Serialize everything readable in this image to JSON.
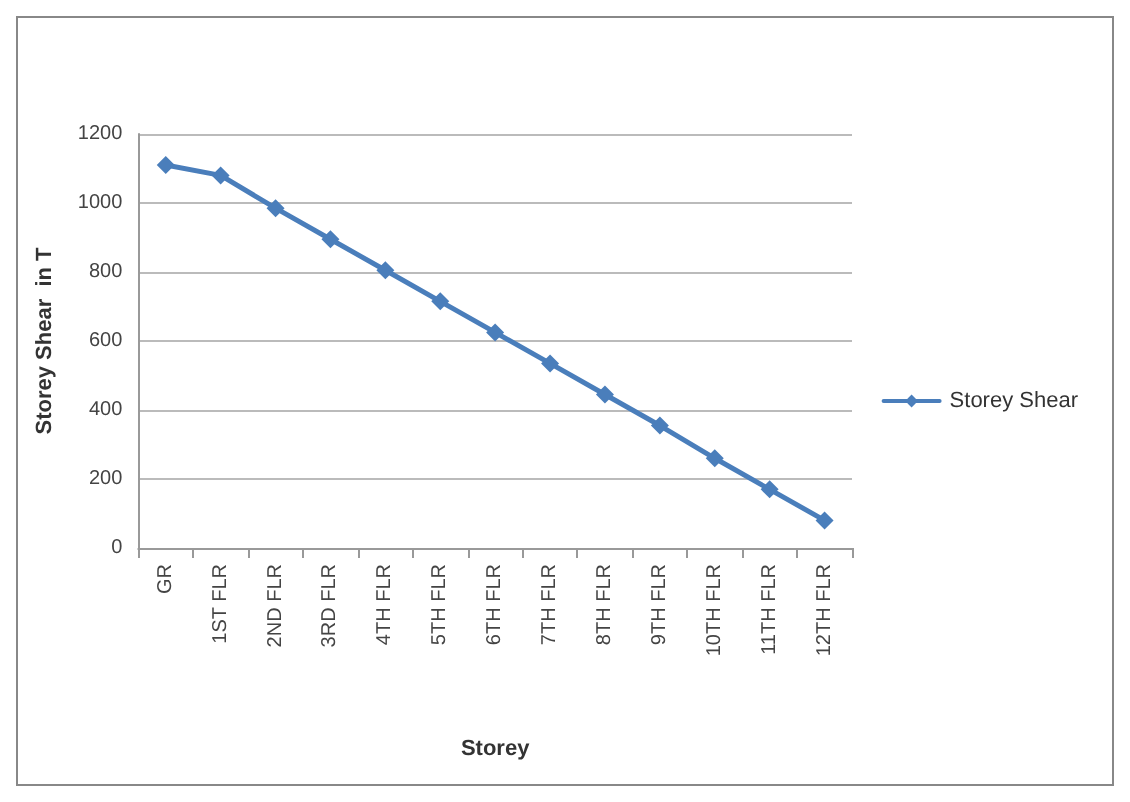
{
  "chart_data": {
    "type": "line",
    "xlabel": "Storey",
    "ylabel": "Storey Shear  in T",
    "categories": [
      "GR",
      "1ST FLR",
      "2ND FLR",
      "3RD FLR",
      "4TH FLR",
      "5TH FLR",
      "6TH FLR",
      "7TH FLR",
      "8TH FLR",
      "9TH FLR",
      "10TH FLR",
      "11TH FLR",
      "12TH FLR"
    ],
    "series": [
      {
        "name": "Storey Shear",
        "color": "#4a7ebb",
        "values": [
          1110,
          1080,
          985,
          895,
          805,
          715,
          625,
          535,
          445,
          355,
          260,
          170,
          80
        ]
      }
    ],
    "ylim": [
      0,
      1200
    ],
    "yticks": [
      0,
      200,
      400,
      600,
      800,
      1000,
      1200
    ],
    "grid": "y",
    "legend": "right",
    "marker": "diamond",
    "line_style": "solid"
  }
}
